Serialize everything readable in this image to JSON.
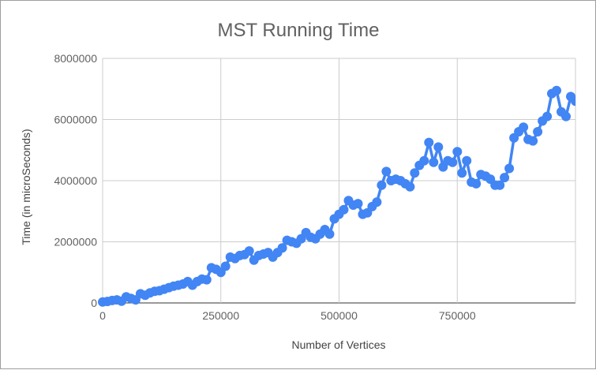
{
  "chart_data": {
    "type": "line",
    "title": "MST Running Time",
    "xlabel": "Number of Vertices",
    "ylabel": "Time (in microSeconds)",
    "xlim": [
      0,
      1000000
    ],
    "ylim": [
      0,
      8000000
    ],
    "xticks": [
      "0",
      "250000",
      "500000",
      "750000"
    ],
    "yticks": [
      "0",
      "2000000",
      "4000000",
      "6000000",
      "8000000"
    ],
    "grid": true,
    "legend": "none",
    "series": [
      {
        "color": "#4285f4",
        "x": [
          0,
          10000,
          20000,
          30000,
          40000,
          50000,
          60000,
          70000,
          80000,
          90000,
          100000,
          110000,
          120000,
          130000,
          140000,
          150000,
          160000,
          170000,
          180000,
          190000,
          200000,
          210000,
          220000,
          230000,
          240000,
          250000,
          260000,
          270000,
          280000,
          290000,
          300000,
          310000,
          320000,
          330000,
          340000,
          350000,
          360000,
          370000,
          380000,
          390000,
          400000,
          410000,
          420000,
          430000,
          440000,
          450000,
          460000,
          470000,
          480000,
          490000,
          500000,
          510000,
          520000,
          530000,
          540000,
          550000,
          560000,
          570000,
          580000,
          590000,
          600000,
          610000,
          620000,
          630000,
          640000,
          650000,
          660000,
          670000,
          680000,
          690000,
          700000,
          710000,
          720000,
          730000,
          740000,
          750000,
          760000,
          770000,
          780000,
          790000,
          800000,
          810000,
          820000,
          830000,
          840000,
          850000,
          860000,
          870000,
          880000,
          890000,
          900000,
          910000,
          920000,
          930000,
          940000,
          950000,
          960000,
          970000,
          980000,
          990000,
          1000000
        ],
        "y": [
          30000,
          50000,
          80000,
          100000,
          60000,
          200000,
          150000,
          100000,
          300000,
          250000,
          330000,
          380000,
          400000,
          450000,
          500000,
          550000,
          580000,
          620000,
          700000,
          580000,
          700000,
          780000,
          760000,
          1150000,
          1100000,
          1000000,
          1200000,
          1500000,
          1450000,
          1550000,
          1580000,
          1700000,
          1400000,
          1550000,
          1600000,
          1650000,
          1500000,
          1650000,
          1800000,
          2050000,
          2000000,
          1950000,
          2100000,
          2300000,
          2150000,
          2100000,
          2250000,
          2400000,
          2250000,
          2750000,
          2900000,
          3050000,
          3350000,
          3200000,
          3250000,
          2900000,
          2950000,
          3150000,
          3300000,
          3850000,
          4300000,
          4000000,
          4050000,
          4000000,
          3900000,
          3800000,
          4250000,
          4500000,
          4650000,
          5250000,
          4600000,
          5100000,
          4450000,
          4650000,
          4600000,
          4950000,
          4250000,
          4650000,
          3950000,
          3900000,
          4200000,
          4150000,
          4050000,
          3850000,
          3850000,
          4100000,
          4400000,
          5400000,
          5600000,
          5750000,
          5350000,
          5300000,
          5600000,
          5950000,
          6100000,
          6850000,
          6950000,
          6250000,
          6100000,
          6750000,
          6600000
        ]
      }
    ]
  }
}
